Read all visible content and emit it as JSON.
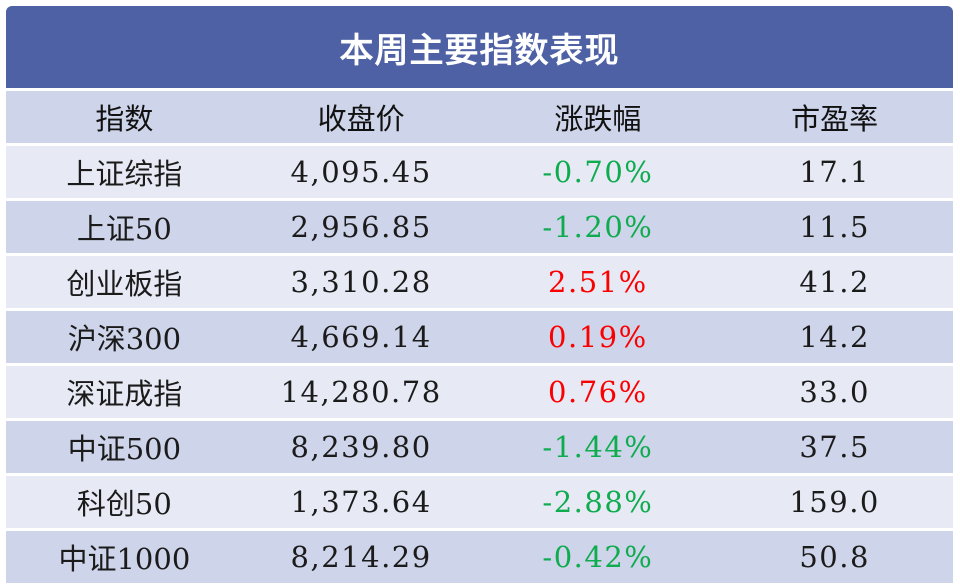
{
  "title": "本周主要指数表现",
  "colors": {
    "title_bar_bg": "#4E61A4",
    "title_text": "#FFFFFF",
    "row_medium": "#CED4E9",
    "row_light": "#E7EAF5",
    "positive_change": "#FB0000",
    "negative_change": "#0FAC4F",
    "body_text": "#1B1B1B"
  },
  "table": {
    "columns": [
      "指数",
      "收盘价",
      "涨跌幅",
      "市盈率"
    ],
    "rows": [
      {
        "index": "上证综指",
        "close": "4,095.45",
        "change": "-0.70%",
        "direction": "down",
        "pe": "17.1"
      },
      {
        "index": "上证50",
        "close": "2,956.85",
        "change": "-1.20%",
        "direction": "down",
        "pe": "11.5"
      },
      {
        "index": "创业板指",
        "close": "3,310.28",
        "change": "2.51%",
        "direction": "up",
        "pe": "41.2"
      },
      {
        "index": "沪深300",
        "close": "4,669.14",
        "change": "0.19%",
        "direction": "up",
        "pe": "14.2"
      },
      {
        "index": "深证成指",
        "close": "14,280.78",
        "change": "0.76%",
        "direction": "up",
        "pe": "33.0"
      },
      {
        "index": "中证500",
        "close": "8,239.80",
        "change": "-1.44%",
        "direction": "down",
        "pe": "37.5"
      },
      {
        "index": "科创50",
        "close": "1,373.64",
        "change": "-2.88%",
        "direction": "down",
        "pe": "159.0"
      },
      {
        "index": "中证1000",
        "close": "8,214.29",
        "change": "-0.42%",
        "direction": "down",
        "pe": "50.8"
      }
    ]
  },
  "chart_data": {
    "type": "table",
    "title": "本周主要指数表现",
    "columns": [
      "指数",
      "收盘价",
      "涨跌幅",
      "市盈率"
    ],
    "rows": [
      [
        "上证综指",
        4095.45,
        -0.7,
        17.1
      ],
      [
        "上证50",
        2956.85,
        -1.2,
        11.5
      ],
      [
        "创业板指",
        3310.28,
        2.51,
        41.2
      ],
      [
        "沪深300",
        4669.14,
        0.19,
        14.2
      ],
      [
        "深证成指",
        14280.78,
        0.76,
        33.0
      ],
      [
        "中证500",
        8239.8,
        -1.44,
        37.5
      ],
      [
        "科创50",
        1373.64,
        -2.88,
        159.0
      ],
      [
        "中证1000",
        8214.29,
        -0.42,
        50.8
      ]
    ],
    "change_unit": "percent",
    "color_convention": "positive change shown red, negative change shown green",
    "layout": "header band dark blue, header row + alternating lavender striped rows, all columns center-aligned"
  }
}
